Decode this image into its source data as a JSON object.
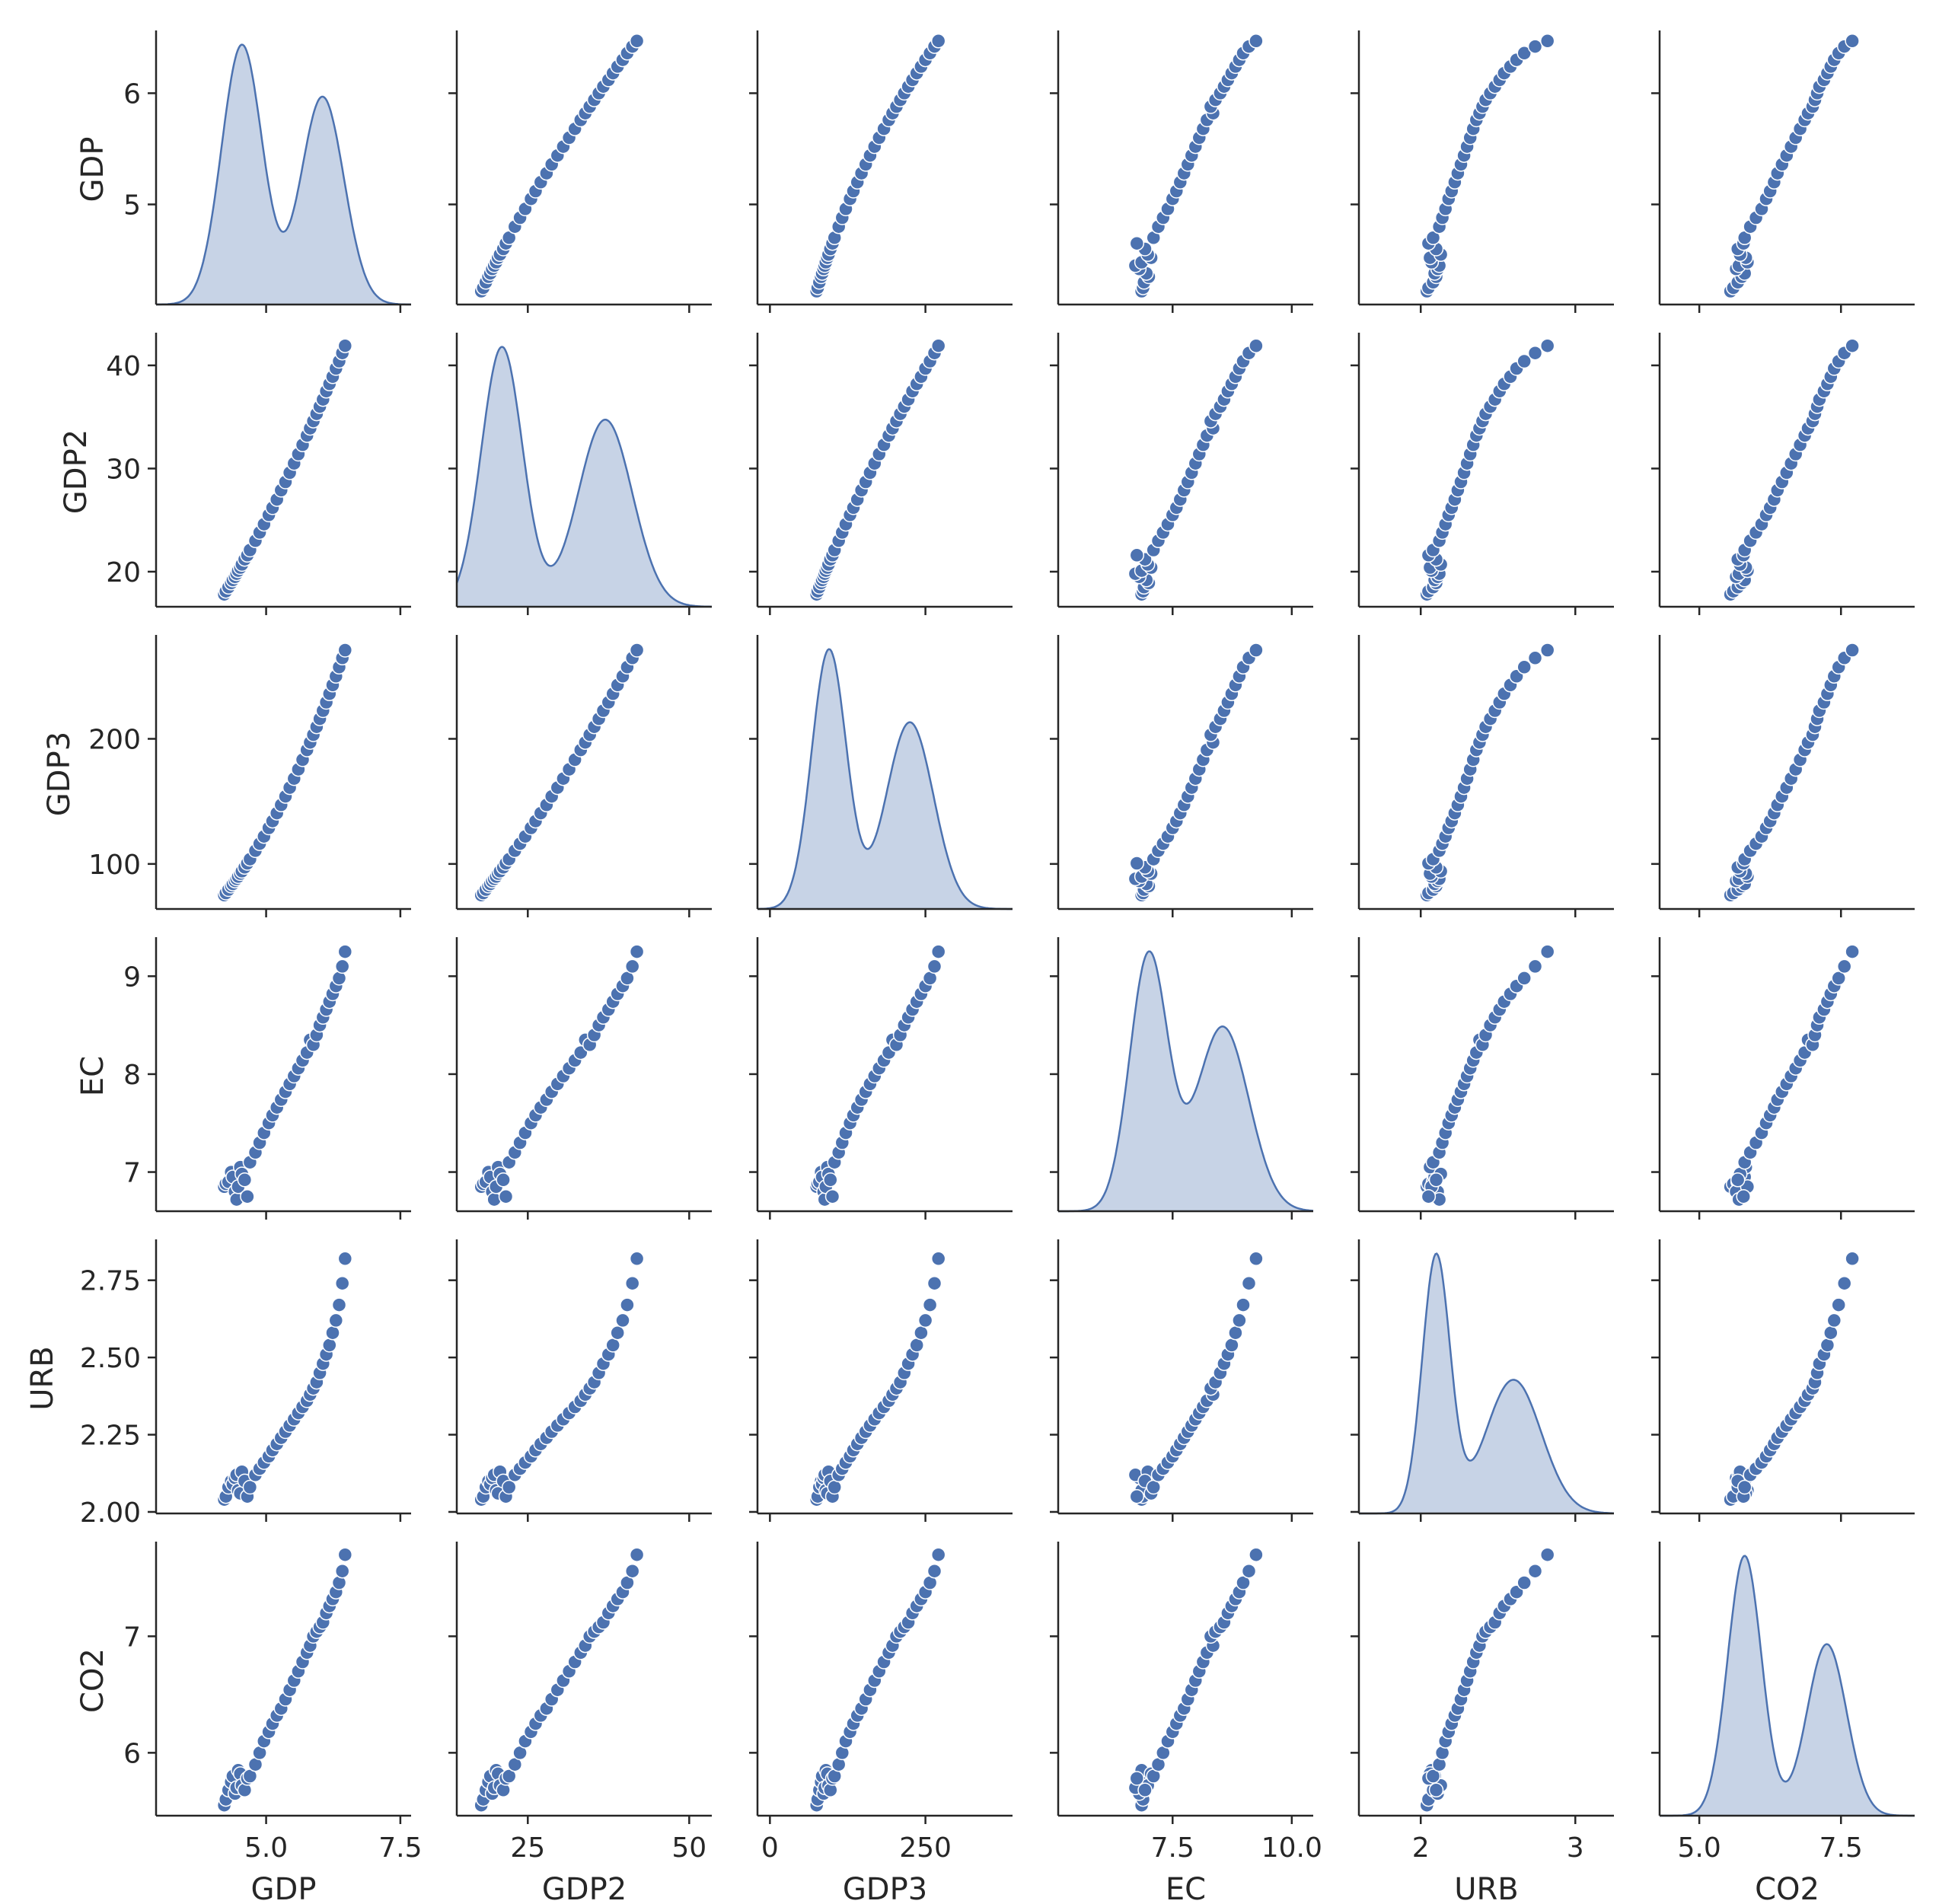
{
  "chart_data": {
    "type": "scatter",
    "subtype": "pairplot",
    "variables": [
      "GDP",
      "GDP2",
      "GDP3",
      "EC",
      "URB",
      "CO2"
    ],
    "diagonal": "kde",
    "marker_color": "#4c72b0",
    "kde_fill": "#c7d3e6",
    "kde_line": "#4c72b0",
    "grid": false,
    "axes": {
      "GDP": {
        "lim": [
          2.95,
          7.7
        ],
        "ticks": [
          5.0,
          7.5
        ],
        "tick_labels": [
          "5.0",
          "7.5"
        ],
        "ylim": [
          4.1,
          6.53
        ],
        "yticks": [
          5,
          6
        ],
        "ytick_labels": [
          "5",
          "6"
        ]
      },
      "GDP2": {
        "lim": [
          14.0,
          53.5
        ],
        "ticks": [
          25,
          50
        ],
        "tick_labels": [
          "25",
          "50"
        ],
        "ylim": [
          16.6,
          42.8
        ],
        "yticks": [
          20,
          30,
          40
        ],
        "ytick_labels": [
          "20",
          "30",
          "40"
        ]
      },
      "GDP3": {
        "lim": [
          -20,
          390
        ],
        "ticks": [
          0,
          250
        ],
        "tick_labels": [
          "0",
          "250"
        ],
        "ylim": [
          64,
          280
        ],
        "yticks": [
          100,
          200
        ],
        "ytick_labels": [
          "100",
          "200"
        ]
      },
      "EC": {
        "lim": [
          5.1,
          10.45
        ],
        "ticks": [
          7.5,
          10.0
        ],
        "tick_labels": [
          "7.5",
          "10.0"
        ],
        "ylim": [
          6.6,
          9.36
        ],
        "yticks": [
          7,
          8,
          9
        ],
        "ytick_labels": [
          "7",
          "8",
          "9"
        ]
      },
      "URB": {
        "lim": [
          1.6,
          3.25
        ],
        "ticks": [
          2,
          3
        ],
        "tick_labels": [
          "2",
          "3"
        ],
        "ylim": [
          1.995,
          2.87
        ],
        "yticks": [
          2.0,
          2.25,
          2.5,
          2.75
        ],
        "ytick_labels": [
          "2.00",
          "2.25",
          "2.50",
          "2.75"
        ]
      },
      "CO2": {
        "lim": [
          4.3,
          8.8
        ],
        "ticks": [
          5.0,
          7.5
        ],
        "tick_labels": [
          "5.0",
          "7.5"
        ],
        "ylim": [
          5.46,
          7.78
        ],
        "yticks": [
          6,
          7
        ],
        "ytick_labels": [
          "6",
          "7"
        ]
      }
    },
    "kde": {
      "GDP": {
        "peaks": [
          {
            "x": 4.55,
            "y": 1.0,
            "w": 0.38
          },
          {
            "x": 6.05,
            "y": 0.8,
            "w": 0.4
          }
        ]
      },
      "GDP2": {
        "peaks": [
          {
            "x": 21,
            "y": 1.0,
            "w": 3.2
          },
          {
            "x": 37,
            "y": 0.72,
            "w": 4.2
          }
        ]
      },
      "GDP3": {
        "peaks": [
          {
            "x": 95,
            "y": 1.0,
            "w": 28
          },
          {
            "x": 225,
            "y": 0.72,
            "w": 38
          }
        ]
      },
      "EC": {
        "peaks": [
          {
            "x": 7.0,
            "y": 1.0,
            "w": 0.4
          },
          {
            "x": 8.55,
            "y": 0.72,
            "w": 0.55
          }
        ]
      },
      "URB": {
        "peaks": [
          {
            "x": 2.1,
            "y": 1.0,
            "w": 0.09
          },
          {
            "x": 2.6,
            "y": 0.52,
            "w": 0.18
          }
        ]
      },
      "CO2": {
        "peaks": [
          {
            "x": 5.8,
            "y": 1.0,
            "w": 0.3
          },
          {
            "x": 7.25,
            "y": 0.66,
            "w": 0.35
          }
        ]
      }
    },
    "points": [
      {
        "GDP": 4.22,
        "GDP2": 17.8,
        "GDP3": 75.1,
        "EC": 6.85,
        "URB": 2.04,
        "CO2": 5.55
      },
      {
        "GDP": 4.25,
        "GDP2": 18.1,
        "GDP3": 76.8,
        "EC": 6.88,
        "URB": 2.05,
        "CO2": 5.6
      },
      {
        "GDP": 4.3,
        "GDP2": 18.5,
        "GDP3": 79.5,
        "EC": 6.9,
        "URB": 2.08,
        "CO2": 5.68
      },
      {
        "GDP": 4.35,
        "GDP2": 18.9,
        "GDP3": 82.3,
        "EC": 7.0,
        "URB": 2.1,
        "CO2": 5.75
      },
      {
        "GDP": 4.38,
        "GDP2": 19.2,
        "GDP3": 84.0,
        "EC": 6.95,
        "URB": 2.09,
        "CO2": 5.8
      },
      {
        "GDP": 4.42,
        "GDP2": 19.5,
        "GDP3": 86.4,
        "EC": 6.8,
        "URB": 2.11,
        "CO2": 5.65
      },
      {
        "GDP": 4.45,
        "GDP2": 19.8,
        "GDP3": 88.1,
        "EC": 6.72,
        "URB": 2.12,
        "CO2": 5.7
      },
      {
        "GDP": 4.48,
        "GDP2": 20.1,
        "GDP3": 89.9,
        "EC": 6.85,
        "URB": 2.07,
        "CO2": 5.85
      },
      {
        "GDP": 4.52,
        "GDP2": 20.4,
        "GDP3": 92.3,
        "EC": 7.05,
        "URB": 2.06,
        "CO2": 5.82
      },
      {
        "GDP": 4.55,
        "GDP2": 20.7,
        "GDP3": 94.2,
        "EC": 6.98,
        "URB": 2.13,
        "CO2": 5.72
      },
      {
        "GDP": 4.6,
        "GDP2": 21.2,
        "GDP3": 97.3,
        "EC": 6.92,
        "URB": 2.1,
        "CO2": 5.68
      },
      {
        "GDP": 4.65,
        "GDP2": 21.6,
        "GDP3": 100.5,
        "EC": 6.75,
        "URB": 2.05,
        "CO2": 5.78
      },
      {
        "GDP": 4.7,
        "GDP2": 22.1,
        "GDP3": 103.8,
        "EC": 7.1,
        "URB": 2.08,
        "CO2": 5.8
      },
      {
        "GDP": 4.8,
        "GDP2": 23.0,
        "GDP3": 110.6,
        "EC": 7.2,
        "URB": 2.12,
        "CO2": 5.9
      },
      {
        "GDP": 4.88,
        "GDP2": 23.8,
        "GDP3": 116.2,
        "EC": 7.3,
        "URB": 2.14,
        "CO2": 6.0
      },
      {
        "GDP": 4.96,
        "GDP2": 24.6,
        "GDP3": 122.0,
        "EC": 7.4,
        "URB": 2.16,
        "CO2": 6.1
      },
      {
        "GDP": 5.05,
        "GDP2": 25.5,
        "GDP3": 128.8,
        "EC": 7.5,
        "URB": 2.18,
        "CO2": 6.18
      },
      {
        "GDP": 5.12,
        "GDP2": 26.2,
        "GDP3": 134.2,
        "EC": 7.58,
        "URB": 2.2,
        "CO2": 6.25
      },
      {
        "GDP": 5.2,
        "GDP2": 27.0,
        "GDP3": 140.6,
        "EC": 7.66,
        "URB": 2.22,
        "CO2": 6.32
      },
      {
        "GDP": 5.28,
        "GDP2": 27.9,
        "GDP3": 147.2,
        "EC": 7.74,
        "URB": 2.24,
        "CO2": 6.38
      },
      {
        "GDP": 5.36,
        "GDP2": 28.7,
        "GDP3": 154.0,
        "EC": 7.82,
        "URB": 2.26,
        "CO2": 6.46
      },
      {
        "GDP": 5.44,
        "GDP2": 29.6,
        "GDP3": 161.0,
        "EC": 7.9,
        "URB": 2.28,
        "CO2": 6.54
      },
      {
        "GDP": 5.52,
        "GDP2": 30.5,
        "GDP3": 168.2,
        "EC": 7.98,
        "URB": 2.3,
        "CO2": 6.62
      },
      {
        "GDP": 5.6,
        "GDP2": 31.4,
        "GDP3": 175.6,
        "EC": 8.06,
        "URB": 2.32,
        "CO2": 6.7
      },
      {
        "GDP": 5.68,
        "GDP2": 32.3,
        "GDP3": 183.3,
        "EC": 8.14,
        "URB": 2.34,
        "CO2": 6.78
      },
      {
        "GDP": 5.76,
        "GDP2": 33.2,
        "GDP3": 191.1,
        "EC": 8.22,
        "URB": 2.36,
        "CO2": 6.86
      },
      {
        "GDP": 5.82,
        "GDP2": 33.9,
        "GDP3": 197.1,
        "EC": 8.35,
        "URB": 2.38,
        "CO2": 6.92
      },
      {
        "GDP": 5.88,
        "GDP2": 34.6,
        "GDP3": 203.3,
        "EC": 8.3,
        "URB": 2.4,
        "CO2": 7.0
      },
      {
        "GDP": 5.94,
        "GDP2": 35.3,
        "GDP3": 209.6,
        "EC": 8.4,
        "URB": 2.42,
        "CO2": 7.04
      },
      {
        "GDP": 6.0,
        "GDP2": 36.0,
        "GDP3": 216.0,
        "EC": 8.5,
        "URB": 2.45,
        "CO2": 7.08
      },
      {
        "GDP": 6.06,
        "GDP2": 36.7,
        "GDP3": 222.5,
        "EC": 8.58,
        "URB": 2.48,
        "CO2": 7.12
      },
      {
        "GDP": 6.12,
        "GDP2": 37.5,
        "GDP3": 229.2,
        "EC": 8.66,
        "URB": 2.51,
        "CO2": 7.2
      },
      {
        "GDP": 6.18,
        "GDP2": 38.2,
        "GDP3": 236.0,
        "EC": 8.74,
        "URB": 2.54,
        "CO2": 7.26
      },
      {
        "GDP": 6.24,
        "GDP2": 38.9,
        "GDP3": 243.0,
        "EC": 8.82,
        "URB": 2.58,
        "CO2": 7.32
      },
      {
        "GDP": 6.3,
        "GDP2": 39.7,
        "GDP3": 250.0,
        "EC": 8.9,
        "URB": 2.62,
        "CO2": 7.38
      },
      {
        "GDP": 6.36,
        "GDP2": 40.4,
        "GDP3": 257.3,
        "EC": 8.98,
        "URB": 2.67,
        "CO2": 7.46
      },
      {
        "GDP": 6.42,
        "GDP2": 41.2,
        "GDP3": 264.6,
        "EC": 9.1,
        "URB": 2.74,
        "CO2": 7.56
      },
      {
        "GDP": 6.47,
        "GDP2": 41.9,
        "GDP3": 270.9,
        "EC": 9.25,
        "URB": 2.82,
        "CO2": 7.7
      }
    ]
  }
}
